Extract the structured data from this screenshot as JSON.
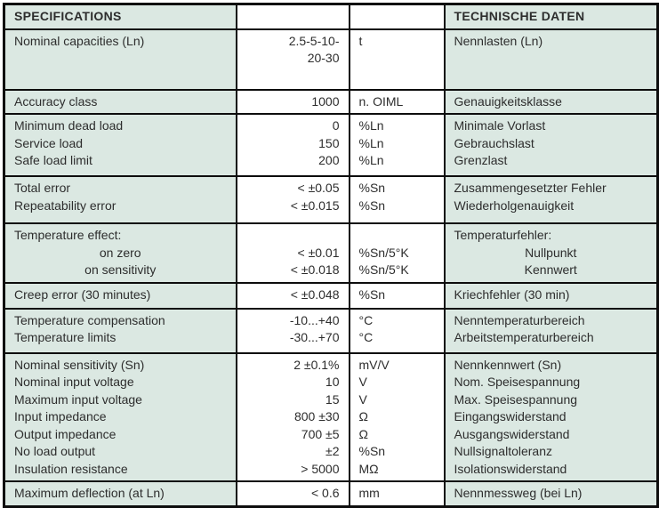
{
  "colors": {
    "cell_background": "#dbe8e2",
    "border": "#0d0d0d",
    "text": "#2d2d2d",
    "value_background": "#ffffff"
  },
  "table": {
    "header": {
      "left": "SPECIFICATIONS",
      "right": "TECHNISCHE DATEN"
    },
    "rows": [
      {
        "h": 68,
        "en": [
          {
            "t": "Nominal capacities (Ln)",
            "center": false
          }
        ],
        "values": [
          "2.5-5-10-",
          "20-30"
        ],
        "units": [
          "t"
        ],
        "de": [
          {
            "t": "Nennlasten (Ln)",
            "center": false
          }
        ]
      },
      {
        "h": 26,
        "en": [
          {
            "t": "Accuracy class",
            "center": false
          }
        ],
        "values": [
          "1000"
        ],
        "units": [
          "n. OIML"
        ],
        "de": [
          {
            "t": "Genauigkeitsklasse",
            "center": false
          }
        ]
      },
      {
        "h": 70,
        "en": [
          {
            "t": "Minimum dead load",
            "center": false
          },
          {
            "t": "Service load",
            "center": false
          },
          {
            "t": "Safe load limit",
            "center": false
          }
        ],
        "values": [
          "0",
          "150",
          "200"
        ],
        "units": [
          "%Ln",
          "%Ln",
          "%Ln"
        ],
        "de": [
          {
            "t": "Minimale Vorlast",
            "center": false
          },
          {
            "t": "Gebrauchslast",
            "center": false
          },
          {
            "t": "Grenzlast",
            "center": false
          }
        ]
      },
      {
        "h": 53,
        "en": [
          {
            "t": "Total error",
            "center": false
          },
          {
            "t": "Repeatability error",
            "center": false
          }
        ],
        "values": [
          "< ±0.05",
          "< ±0.015"
        ],
        "units": [
          "%Sn",
          "%Sn"
        ],
        "de": [
          {
            "t": "Zusammengesetzter Fehler",
            "center": false
          },
          {
            "t": "Wiederholgenauigkeit",
            "center": false
          }
        ]
      },
      {
        "h": 60,
        "en": [
          {
            "t": "Temperature effect:",
            "center": false
          },
          {
            "t": "on zero",
            "center": true
          },
          {
            "t": "on sensitivity",
            "center": true
          }
        ],
        "values": [
          "",
          "< ±0.01",
          "< ±0.018"
        ],
        "units": [
          "",
          "%Sn/5°K",
          "%Sn/5°K"
        ],
        "de": [
          {
            "t": "Temperaturfehler:",
            "center": false
          },
          {
            "t": "Nullpunkt",
            "center": true
          },
          {
            "t": "Kennwert",
            "center": true
          }
        ]
      },
      {
        "h": 29,
        "en": [
          {
            "t": "Creep error (30 minutes)",
            "center": false
          }
        ],
        "values": [
          "< ±0.048"
        ],
        "units": [
          "%Sn"
        ],
        "de": [
          {
            "t": "Kriechfehler (30 min)",
            "center": false
          }
        ]
      },
      {
        "h": 50,
        "en": [
          {
            "t": "Temperature compensation",
            "center": false
          },
          {
            "t": "Temperature limits",
            "center": false
          }
        ],
        "values": [
          "-10...+40",
          "-30...+70"
        ],
        "units": [
          "°C",
          "°C"
        ],
        "de": [
          {
            "t": "Nenntemperaturbereich",
            "center": false
          },
          {
            "t": "Arbeitstemperaturbereich",
            "center": false
          }
        ]
      },
      {
        "h": 138,
        "en": [
          {
            "t": "Nominal sensitivity (Sn)",
            "center": false
          },
          {
            "t": "Nominal input voltage",
            "center": false
          },
          {
            "t": "Maximum input voltage",
            "center": false
          },
          {
            "t": "Input impedance",
            "center": false
          },
          {
            "t": "Output impedance",
            "center": false
          },
          {
            "t": "No load output",
            "center": false
          },
          {
            "t": "Insulation resistance",
            "center": false
          }
        ],
        "values": [
          "2 ±0.1%",
          "10",
          "15",
          "800 ±30",
          "700 ±5",
          "±2",
          "> 5000"
        ],
        "units": [
          "mV/V",
          "V",
          "V",
          "Ω",
          "Ω",
          "%Sn",
          "MΩ"
        ],
        "de": [
          {
            "t": "Nennkennwert (Sn)",
            "center": false
          },
          {
            "t": "Nom. Speisespannung",
            "center": false
          },
          {
            "t": "Max. Speisespannung",
            "center": false
          },
          {
            "t": "Eingangswiderstand",
            "center": false
          },
          {
            "t": "Ausgangswiderstand",
            "center": false
          },
          {
            "t": "Nullsignaltoleranz",
            "center": false
          },
          {
            "t": "Isolationswiderstand",
            "center": false
          }
        ]
      },
      {
        "h": 25,
        "en": [
          {
            "t": "Maximum deflection (at Ln)",
            "center": false
          }
        ],
        "values": [
          "< 0.6"
        ],
        "units": [
          "mm"
        ],
        "de": [
          {
            "t": "Nennmessweg (bei Ln)",
            "center": false
          }
        ]
      }
    ]
  }
}
